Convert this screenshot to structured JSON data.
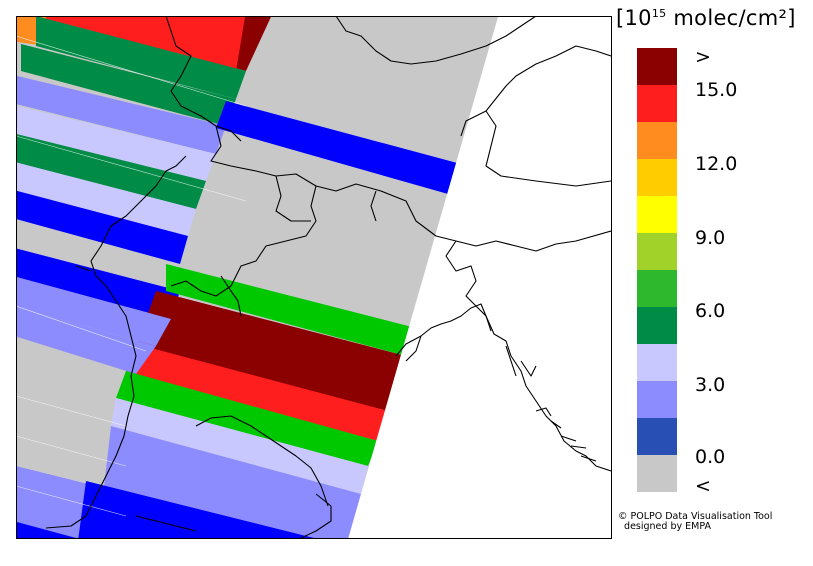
{
  "legend": {
    "unit_prefix": "[10",
    "unit_exp": "15",
    "unit_suffix": " molec/cm²]",
    "labels": [
      ">",
      "15.0",
      "12.0",
      "9.0",
      "6.0",
      "3.0",
      "0.0",
      "<"
    ],
    "colors": [
      "#8b0000",
      "#ff1e1e",
      "#ff8c1e",
      "#ffcc00",
      "#ffff00",
      "#a0d22a",
      "#2eb82e",
      "#008c46",
      "#c8c8ff",
      "#8c8cff",
      "#2850b4",
      "#c8c8c8"
    ]
  },
  "credit": {
    "line1": "© POLPO Data Visualisation Tool",
    "line2": "  designed by EMPA"
  }
}
